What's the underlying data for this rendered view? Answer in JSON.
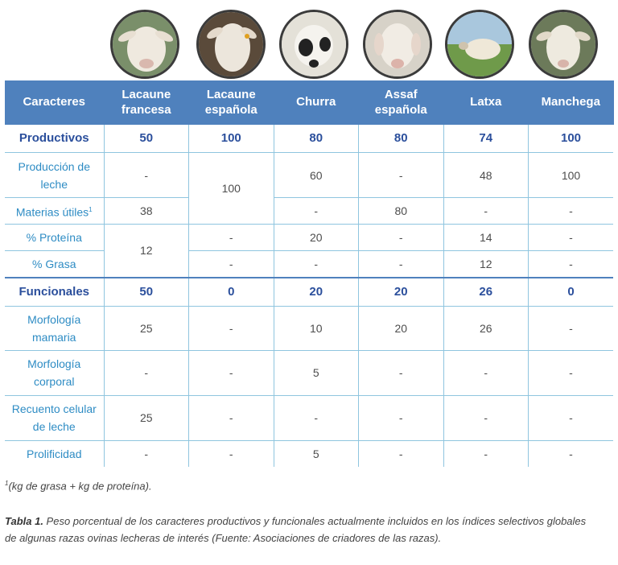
{
  "table": {
    "headers": [
      "Caracteres",
      "Lacaune francesa",
      "Lacaune española",
      "Churra",
      "Assaf española",
      "Latxa",
      "Manchega"
    ],
    "photo_icons": [
      "lacaune-francesa-sheep-photo",
      "lacaune-espanola-sheep-photo",
      "churra-sheep-photo",
      "assaf-sheep-photo",
      "latxa-sheep-photo",
      "manchega-sheep-photo"
    ],
    "productivos": {
      "label": "Productivos",
      "values": [
        "50",
        "100",
        "80",
        "80",
        "74",
        "100"
      ]
    },
    "produccion_leche": {
      "label": "Producción de leche",
      "v1": "-",
      "v2": "100",
      "v3": "60",
      "v4": "-",
      "v5": "48",
      "v6": "100"
    },
    "materias_utiles": {
      "label": "Materias útiles",
      "sup": "1",
      "v1": "38",
      "v3": "-",
      "v4": "80",
      "v5": "-",
      "v6": "-"
    },
    "proteina": {
      "label": "% Proteína",
      "v1": "12",
      "v2": "-",
      "v3": "20",
      "v4": "-",
      "v5": "14",
      "v6": "-"
    },
    "grasa": {
      "label": "% Grasa",
      "v2": "-",
      "v3": "-",
      "v4": "-",
      "v5": "12",
      "v6": "-"
    },
    "funcionales": {
      "label": "Funcionales",
      "values": [
        "50",
        "0",
        "20",
        "20",
        "26",
        "0"
      ]
    },
    "morf_mamaria": {
      "label": "Morfología mamaria",
      "values": [
        "25",
        "-",
        "10",
        "20",
        "26",
        "-"
      ]
    },
    "morf_corporal": {
      "label": "Morfología corporal",
      "values": [
        "-",
        "-",
        "5",
        "-",
        "-",
        "-"
      ]
    },
    "recuento": {
      "label": "Recuento celular de leche",
      "values": [
        "25",
        "-",
        "-",
        "-",
        "-",
        "-"
      ]
    },
    "prolificidad": {
      "label": "Prolificidad",
      "values": [
        "-",
        "-",
        "5",
        "-",
        "-",
        "-"
      ]
    }
  },
  "footnote": {
    "sup": "1",
    "text": "(kg de grasa + kg de proteína)."
  },
  "caption": {
    "label": "Tabla 1.",
    "text": " Peso porcentual de los caracteres productivos y funcionales actualmente incluidos en los índices selectivos globales de algunas razas ovinas lecheras de interés (Fuente: Asociaciones de criadores de las razas)."
  }
}
